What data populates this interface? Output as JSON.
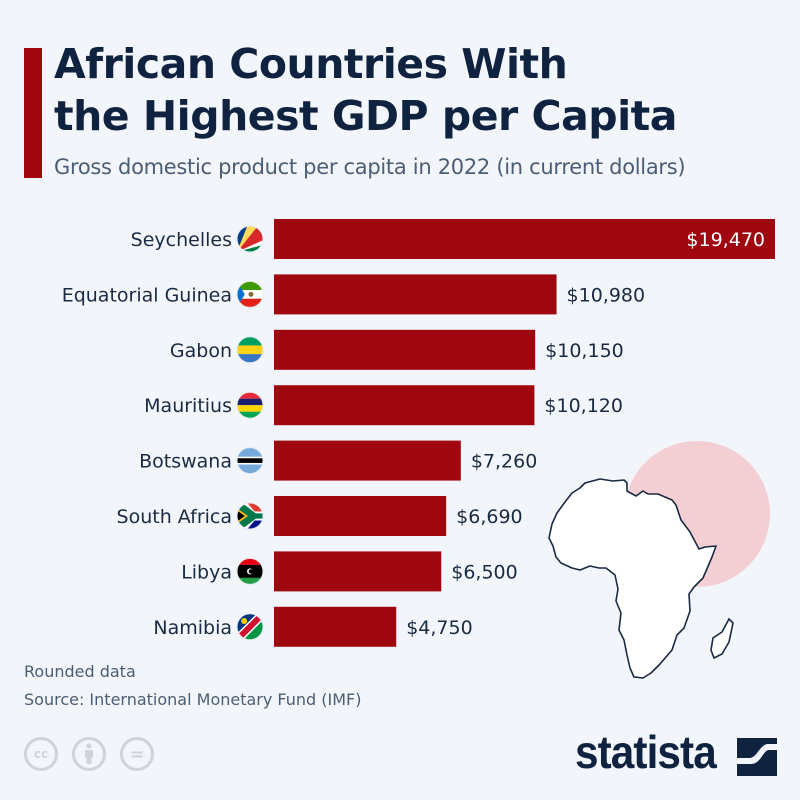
{
  "header": {
    "title_line1": "African Countries With",
    "title_line2": "the Highest GDP per Capita",
    "subtitle": "Gross domestic product per capita in 2022 (in current dollars)"
  },
  "colors": {
    "bar": "#a0060f",
    "accent": "#a0060f",
    "text": "#1a2a42",
    "background": "#f2f6fa",
    "map_highlight": "#f3cfd3"
  },
  "chart_data": {
    "type": "bar",
    "orientation": "horizontal",
    "title": "African Countries With the Highest GDP per Capita",
    "subtitle": "Gross domestic product per capita in 2022 (in current dollars)",
    "xlabel": "",
    "ylabel": "",
    "xlim": [
      0,
      19470
    ],
    "grid": false,
    "categories": [
      "Seychelles",
      "Equatorial Guinea",
      "Gabon",
      "Mauritius",
      "Botswana",
      "South Africa",
      "Libya",
      "Namibia"
    ],
    "values": [
      19470,
      10980,
      10150,
      10120,
      7260,
      6690,
      6500,
      4750
    ],
    "labels": [
      "$19,470",
      "$10,980",
      "$10,150",
      "$10,120",
      "$7,260",
      "$6,690",
      "$6,500",
      "$4,750"
    ],
    "flags": [
      "seychelles-flag-icon",
      "equatorial-guinea-flag-icon",
      "gabon-flag-icon",
      "mauritius-flag-icon",
      "botswana-flag-icon",
      "south-africa-flag-icon",
      "libya-flag-icon",
      "namibia-flag-icon"
    ]
  },
  "footer": {
    "note": "Rounded data",
    "source": "Source: International Monetary Fund (IMF)",
    "license_icons": [
      "cc-icon",
      "attribution-icon",
      "no-derivatives-icon"
    ],
    "cc_label": "cc",
    "nd_label": "=",
    "brand": "statista"
  }
}
